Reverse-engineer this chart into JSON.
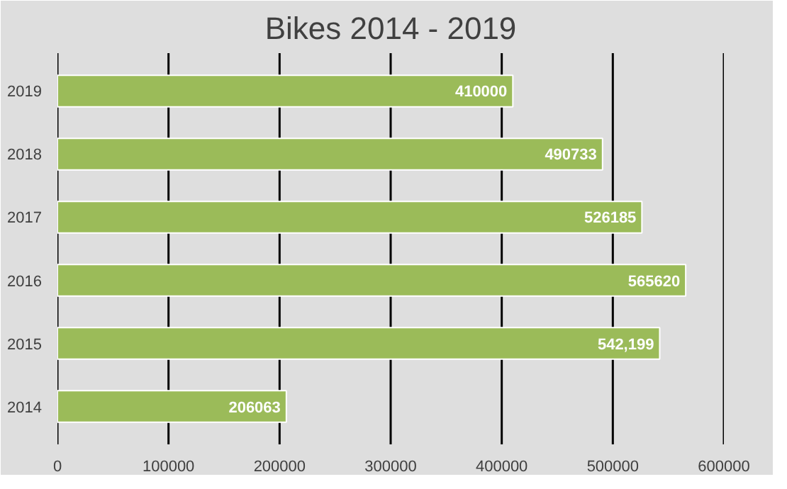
{
  "chart_data": {
    "type": "bar",
    "title": "Bikes 2014 - 2019",
    "orientation": "horizontal",
    "categories": [
      "2019",
      "2018",
      "2017",
      "2016",
      "2015",
      "2014"
    ],
    "values": [
      410000,
      490733,
      526185,
      565620,
      542199,
      206063
    ],
    "value_labels": [
      "410000",
      "490733",
      "526185",
      "565620",
      "542,199",
      "206063"
    ],
    "color": "#9bbb59",
    "xlim": [
      0,
      600000
    ],
    "xticks": [
      0,
      100000,
      200000,
      300000,
      400000,
      500000,
      600000
    ],
    "grid": "x"
  }
}
